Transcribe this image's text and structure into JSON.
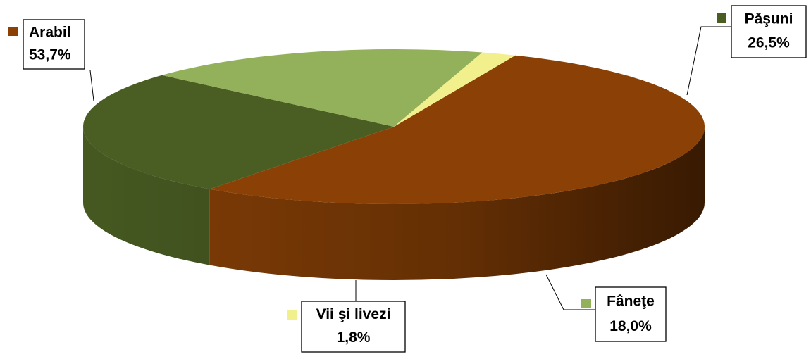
{
  "chart_data": {
    "type": "pie",
    "categories": [
      "Arabil",
      "Păşuni",
      "Fâneţe",
      "Vii şi livezi"
    ],
    "values": [
      53.7,
      26.5,
      18.0,
      1.8
    ],
    "value_labels": [
      "53,7%",
      "26,5%",
      "18,0%",
      "1,8%"
    ],
    "colors": [
      "#8b4106",
      "#4a5e23",
      "#93b05a",
      "#f2f08c"
    ]
  }
}
